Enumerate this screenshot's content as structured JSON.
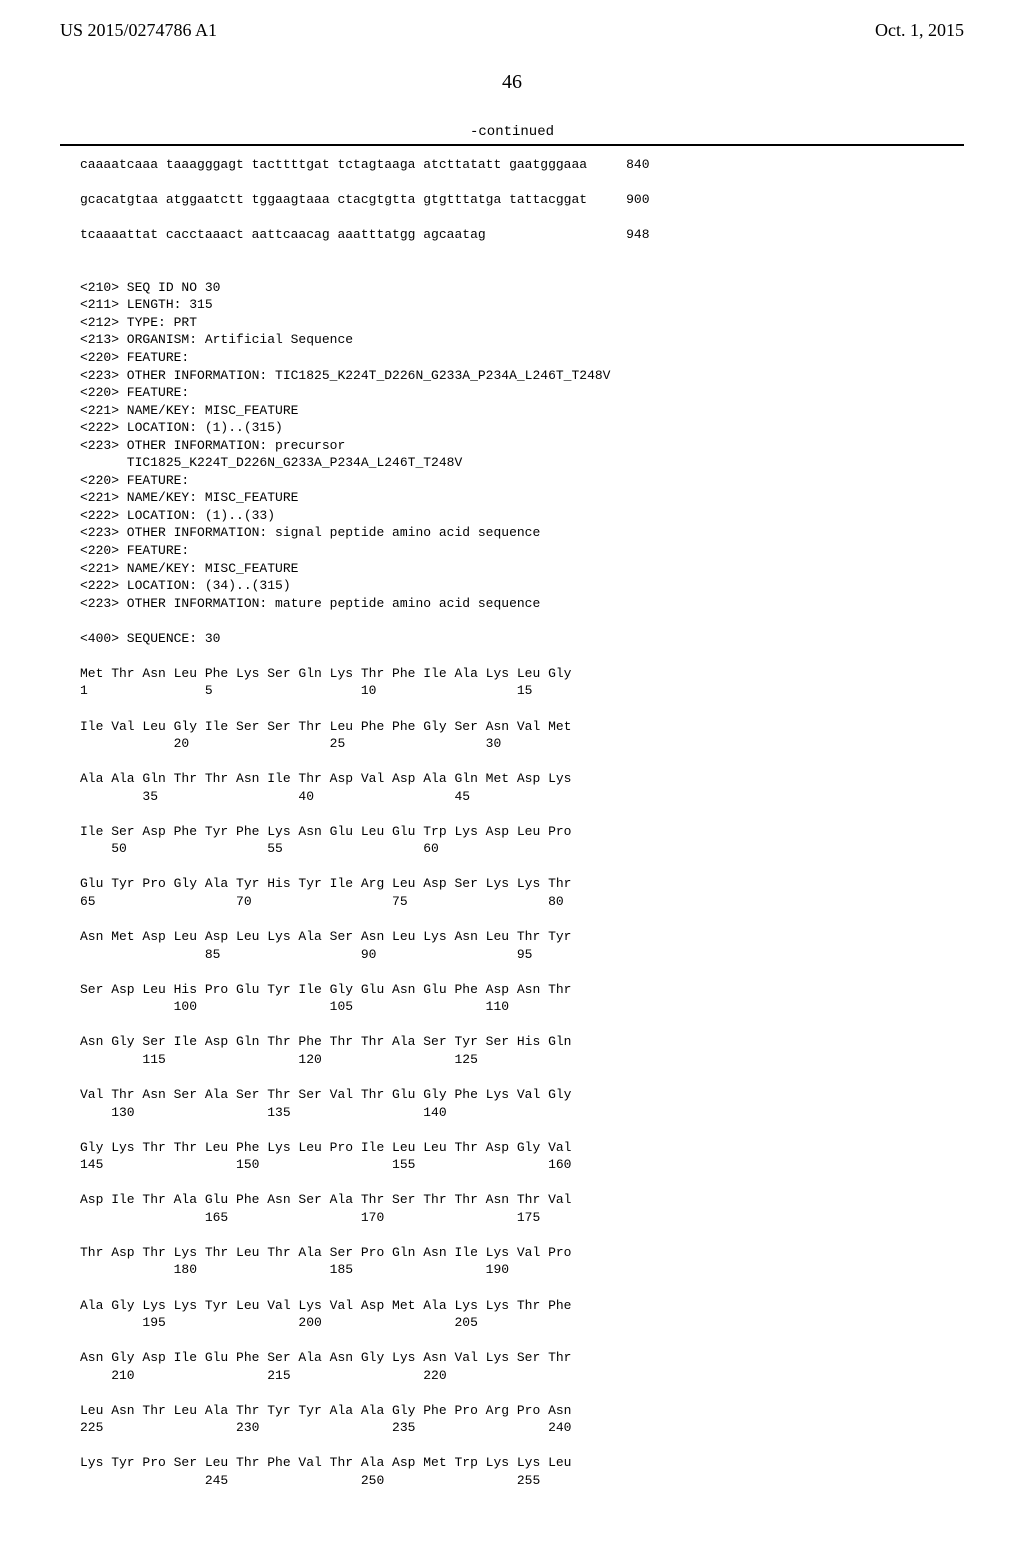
{
  "header": {
    "left": "US 2015/0274786 A1",
    "right": "Oct. 1, 2015"
  },
  "page_number": "46",
  "continued": "-continued",
  "nucleotide_lines": [
    {
      "seq": "caaaatcaaa taaagggagt tacttttgat tctagtaaga atcttatatt gaatgggaaa",
      "pos": "840"
    },
    {
      "seq": "gcacatgtaa atggaatctt tggaagtaaa ctacgtgtta gtgtttatga tattacggat",
      "pos": "900"
    },
    {
      "seq": "tcaaaattat cacctaaact aattcaacag aaatttatgg agcaatag",
      "pos": "948"
    }
  ],
  "metadata": [
    "<210> SEQ ID NO 30",
    "<211> LENGTH: 315",
    "<212> TYPE: PRT",
    "<213> ORGANISM: Artificial Sequence",
    "<220> FEATURE:",
    "<223> OTHER INFORMATION: TIC1825_K224T_D226N_G233A_P234A_L246T_T248V",
    "<220> FEATURE:",
    "<221> NAME/KEY: MISC_FEATURE",
    "<222> LOCATION: (1)..(315)",
    "<223> OTHER INFORMATION: precursor",
    "      TIC1825_K224T_D226N_G233A_P234A_L246T_T248V",
    "<220> FEATURE:",
    "<221> NAME/KEY: MISC_FEATURE",
    "<222> LOCATION: (1)..(33)",
    "<223> OTHER INFORMATION: signal peptide amino acid sequence",
    "<220> FEATURE:",
    "<221> NAME/KEY: MISC_FEATURE",
    "<222> LOCATION: (34)..(315)",
    "<223> OTHER INFORMATION: mature peptide amino acid sequence",
    "",
    "<400> SEQUENCE: 30"
  ],
  "protein_rows": [
    {
      "aa": "Met Thr Asn Leu Phe Lys Ser Gln Lys Thr Phe Ile Ala Lys Leu Gly",
      "nums": "1               5                   10                  15"
    },
    {
      "aa": "Ile Val Leu Gly Ile Ser Ser Thr Leu Phe Phe Gly Ser Asn Val Met",
      "nums": "            20                  25                  30"
    },
    {
      "aa": "Ala Ala Gln Thr Thr Asn Ile Thr Asp Val Asp Ala Gln Met Asp Lys",
      "nums": "        35                  40                  45"
    },
    {
      "aa": "Ile Ser Asp Phe Tyr Phe Lys Asn Glu Leu Glu Trp Lys Asp Leu Pro",
      "nums": "    50                  55                  60"
    },
    {
      "aa": "Glu Tyr Pro Gly Ala Tyr His Tyr Ile Arg Leu Asp Ser Lys Lys Thr",
      "nums": "65                  70                  75                  80"
    },
    {
      "aa": "Asn Met Asp Leu Asp Leu Lys Ala Ser Asn Leu Lys Asn Leu Thr Tyr",
      "nums": "                85                  90                  95"
    },
    {
      "aa": "Ser Asp Leu His Pro Glu Tyr Ile Gly Glu Asn Glu Phe Asp Asn Thr",
      "nums": "            100                 105                 110"
    },
    {
      "aa": "Asn Gly Ser Ile Asp Gln Thr Phe Thr Thr Ala Ser Tyr Ser His Gln",
      "nums": "        115                 120                 125"
    },
    {
      "aa": "Val Thr Asn Ser Ala Ser Thr Ser Val Thr Glu Gly Phe Lys Val Gly",
      "nums": "    130                 135                 140"
    },
    {
      "aa": "Gly Lys Thr Thr Leu Phe Lys Leu Pro Ile Leu Leu Thr Asp Gly Val",
      "nums": "145                 150                 155                 160"
    },
    {
      "aa": "Asp Ile Thr Ala Glu Phe Asn Ser Ala Thr Ser Thr Thr Asn Thr Val",
      "nums": "                165                 170                 175"
    },
    {
      "aa": "Thr Asp Thr Lys Thr Leu Thr Ala Ser Pro Gln Asn Ile Lys Val Pro",
      "nums": "            180                 185                 190"
    },
    {
      "aa": "Ala Gly Lys Lys Tyr Leu Val Lys Val Asp Met Ala Lys Lys Thr Phe",
      "nums": "        195                 200                 205"
    },
    {
      "aa": "Asn Gly Asp Ile Glu Phe Ser Ala Asn Gly Lys Asn Val Lys Ser Thr",
      "nums": "    210                 215                 220"
    },
    {
      "aa": "Leu Asn Thr Leu Ala Thr Tyr Tyr Ala Ala Gly Phe Pro Arg Pro Asn",
      "nums": "225                 230                 235                 240"
    },
    {
      "aa": "Lys Tyr Pro Ser Leu Thr Phe Val Thr Ala Asp Met Trp Lys Lys Leu",
      "nums": "                245                 250                 255"
    }
  ]
}
